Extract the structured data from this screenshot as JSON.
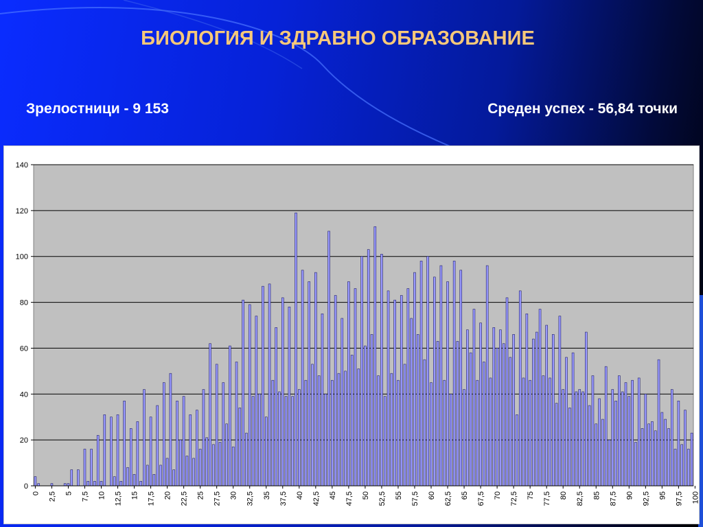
{
  "slide": {
    "title": "БИОЛОГИЯ И ЗДРАВНО ОБРАЗОВАНИЕ",
    "left_stat": "Зрелостници - 9 153",
    "right_stat": "Среден успех - 56,84 точки"
  },
  "colors": {
    "title": "#f6c87a",
    "bar_fill": "#9999ff",
    "bar_stroke": "#222266",
    "plot_bg": "#c0c0c0"
  },
  "chart_data": {
    "type": "bar",
    "title": "",
    "xlabel": "",
    "ylabel": "",
    "ylim": [
      0,
      140
    ],
    "yticks": [
      0,
      20,
      40,
      60,
      80,
      100,
      120,
      140
    ],
    "xtick_labels": [
      "0",
      "2,5",
      "5",
      "7,5",
      "10",
      "12,5",
      "15",
      "17,5",
      "20",
      "22,5",
      "25",
      "27,5",
      "30",
      "32,5",
      "35",
      "37,5",
      "40",
      "42,5",
      "45",
      "47,5",
      "50",
      "52,5",
      "55",
      "57,5",
      "60",
      "62,5",
      "65",
      "67,5",
      "70",
      "72,5",
      "75",
      "77,5",
      "80",
      "82,5",
      "85",
      "87,5",
      "90",
      "92,5",
      "95",
      "97,5",
      "100"
    ],
    "grid": true,
    "legend": "none",
    "x_start": 0,
    "x_step": 0.5,
    "values": [
      4,
      1,
      0,
      0,
      0,
      1,
      0,
      0,
      0,
      1,
      1,
      7,
      0,
      7,
      0,
      16,
      2,
      16,
      2,
      22,
      2,
      31,
      0,
      30,
      4,
      31,
      2,
      37,
      8,
      25,
      5,
      28,
      2,
      42,
      9,
      30,
      5,
      35,
      9,
      45,
      12,
      49,
      7,
      37,
      20,
      39,
      13,
      31,
      12,
      33,
      16,
      42,
      21,
      62,
      18,
      53,
      19,
      45,
      27,
      61,
      17,
      54,
      34,
      81,
      23,
      79,
      39,
      74,
      40,
      87,
      30,
      88,
      46,
      69,
      41,
      82,
      39,
      78,
      39,
      119,
      42,
      94,
      46,
      89,
      53,
      93,
      48,
      75,
      40,
      111,
      46,
      83,
      49,
      73,
      50,
      89,
      57,
      86,
      51,
      100,
      61,
      103,
      66,
      113,
      48,
      101,
      39,
      85,
      49,
      81,
      46,
      83,
      53,
      86,
      73,
      93,
      66,
      98,
      55,
      100,
      45,
      91,
      63,
      96,
      46,
      89,
      40,
      98,
      63,
      94,
      42,
      68,
      58,
      77,
      46,
      71,
      54,
      96,
      47,
      69,
      60,
      68,
      62,
      82,
      56,
      66,
      31,
      85,
      47,
      75,
      46,
      64,
      67,
      77,
      48,
      70,
      47,
      66,
      36,
      74,
      42,
      56,
      34,
      58,
      41,
      42,
      41,
      67,
      35,
      48,
      27,
      38,
      29,
      52,
      20,
      42,
      37,
      48,
      41,
      45,
      39,
      46,
      19,
      47,
      25,
      40,
      27,
      28,
      24,
      55,
      32,
      29,
      25,
      42,
      16,
      37,
      18,
      33,
      16,
      23
    ]
  }
}
